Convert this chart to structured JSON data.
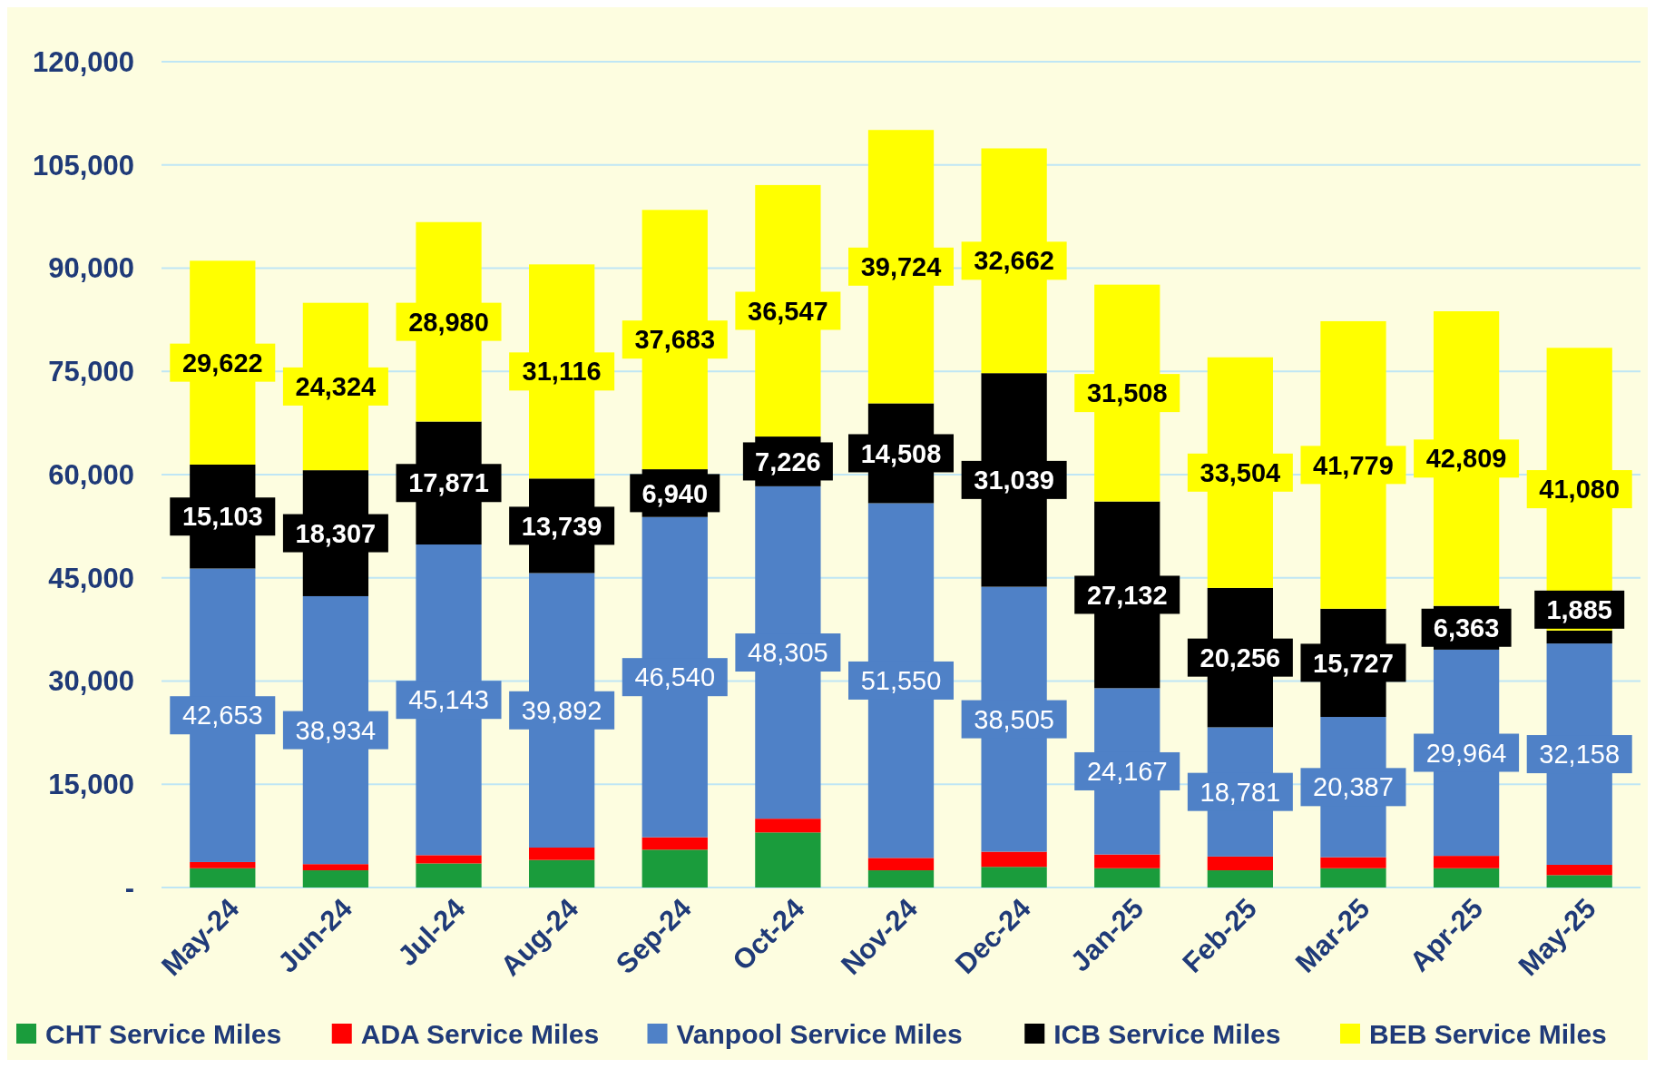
{
  "chart_data": {
    "type": "bar",
    "stacked": true,
    "categories": [
      "May-24",
      "Jun-24",
      "Jul-24",
      "Aug-24",
      "Sep-24",
      "Oct-24",
      "Nov-24",
      "Dec-24",
      "Jan-25",
      "Feb-25",
      "Mar-25",
      "Apr-25",
      "May-25"
    ],
    "series": [
      {
        "name": "CHT Service Miles",
        "color": "#1a9c3c",
        "values": [
          2800,
          2500,
          3500,
          4000,
          5500,
          8000,
          2500,
          3000,
          2800,
          2500,
          2800,
          2800,
          1800
        ]
      },
      {
        "name": "ADA Service Miles",
        "color": "#ff0000",
        "values": [
          900,
          900,
          1200,
          1800,
          1800,
          2000,
          1800,
          2200,
          2000,
          2000,
          1600,
          1800,
          1500
        ]
      },
      {
        "name": "Vanpool Service Miles",
        "color": "#4f81c7",
        "values": [
          42653,
          38934,
          45143,
          39892,
          46540,
          48305,
          51550,
          38505,
          24167,
          18781,
          20387,
          29964,
          32158
        ],
        "value_labels": [
          "42,653",
          "38,934",
          "45,143",
          "39,892",
          "46,540",
          "48,305",
          "51,550",
          "38,505",
          "24,167",
          "18,781",
          "20,387",
          "29,964",
          "32,158"
        ]
      },
      {
        "name": "ICB Service Miles",
        "color": "#000000",
        "values": [
          15103,
          18307,
          17871,
          13739,
          6940,
          7226,
          14508,
          31039,
          27132,
          20256,
          15727,
          6363,
          1885
        ],
        "value_labels": [
          "15,103",
          "18,307",
          "17,871",
          "13,739",
          "6,940",
          "7,226",
          "14,508",
          "31,039",
          "27,132",
          "20,256",
          "15,727",
          "6,363",
          "1,885"
        ]
      },
      {
        "name": "BEB Service Miles",
        "color": "#ffff00",
        "values": [
          29622,
          24324,
          28980,
          31116,
          37683,
          36547,
          39724,
          32662,
          31508,
          33504,
          41779,
          42809,
          41080
        ],
        "value_labels": [
          "29,622",
          "24,324",
          "28,980",
          "31,116",
          "37,683",
          "36,547",
          "39,724",
          "32,662",
          "31,508",
          "33,504",
          "41,779",
          "42,809",
          "41,080"
        ]
      }
    ],
    "ylim": [
      0,
      120000
    ],
    "yticks": [
      {
        "value": 0,
        "label": "-"
      },
      {
        "value": 15000,
        "label": "15,000"
      },
      {
        "value": 30000,
        "label": "30,000"
      },
      {
        "value": 45000,
        "label": "45,000"
      },
      {
        "value": 60000,
        "label": "60,000"
      },
      {
        "value": 75000,
        "label": "75,000"
      },
      {
        "value": 90000,
        "label": "90,000"
      },
      {
        "value": 105000,
        "label": "105,000"
      },
      {
        "value": 120000,
        "label": "120,000"
      }
    ],
    "grid": "y",
    "legend": "bottom"
  }
}
